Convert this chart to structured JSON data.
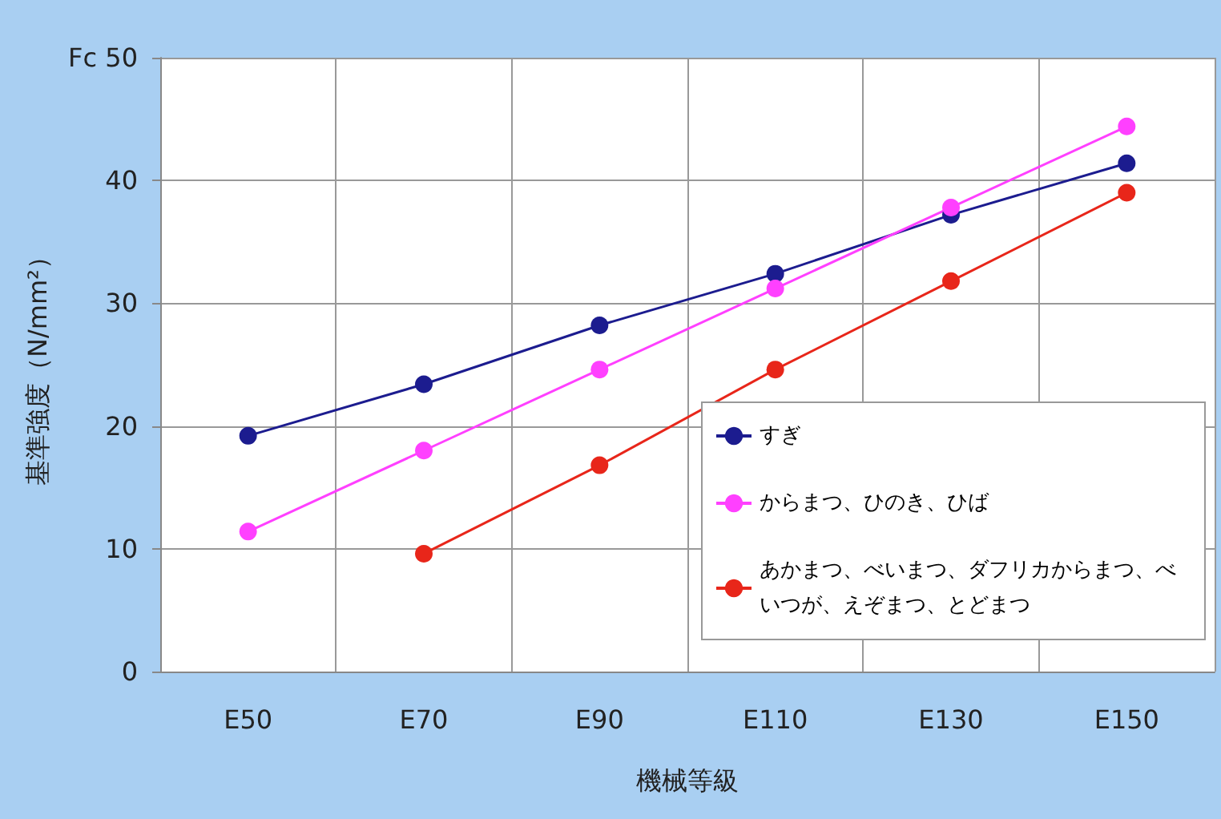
{
  "chart_data": {
    "type": "line",
    "xlabel": "機械等級",
    "ylabel": "基準強度（N/mm²）",
    "categories": [
      "E50",
      "E70",
      "E90",
      "E110",
      "E130",
      "E150"
    ],
    "series": [
      {
        "name": "すぎ",
        "color": "#1c1c8f",
        "values": [
          19.2,
          23.4,
          28.2,
          32.4,
          37.2,
          41.4
        ]
      },
      {
        "name": "からまつ、ひのき、ひば",
        "color": "#ff40ff",
        "values": [
          11.4,
          18.0,
          24.6,
          31.2,
          37.8,
          44.4
        ]
      },
      {
        "name": "あかまつ、べいまつ、ダフリカからまつ、べいつが、えぞまつ、とどまつ",
        "color": "#e8261a",
        "values": [
          null,
          9.6,
          16.8,
          24.6,
          31.8,
          39.0
        ]
      }
    ],
    "ylim": [
      0,
      50
    ],
    "yticks": [
      0,
      10,
      20,
      30,
      40,
      {
        "value": 50,
        "label": "Fc 50"
      }
    ],
    "grid": true,
    "legend": "bottom right",
    "marker": "circle",
    "line_style": "solid"
  }
}
